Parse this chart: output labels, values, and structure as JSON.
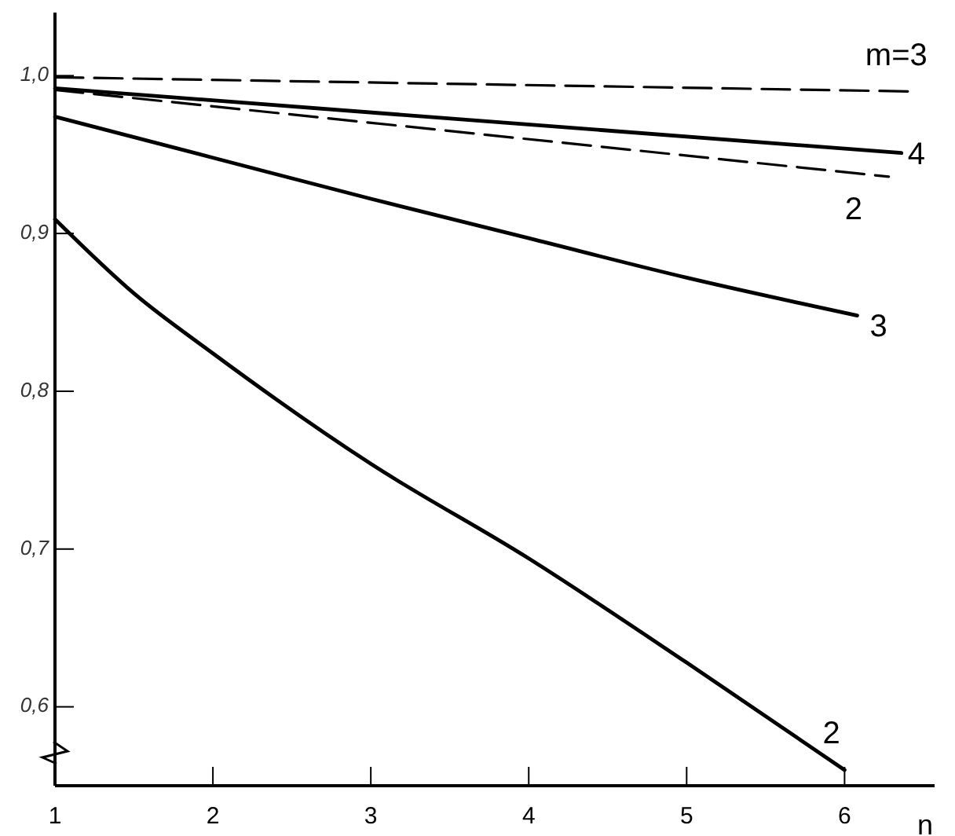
{
  "chart_data": {
    "type": "line",
    "xlabel": "n",
    "series": [
      {
        "name": "m=3",
        "color": "#000000",
        "line_style": "dashed",
        "x": [
          1,
          6.43
        ],
        "values": [
          0.999,
          0.99
        ]
      },
      {
        "name": "4",
        "color": "#000000",
        "line_style": "solid",
        "x": [
          1,
          6.36
        ],
        "values": [
          0.992,
          0.951
        ]
      },
      {
        "name": "2",
        "color": "#000000",
        "line_style": "dashed",
        "x": [
          1,
          6.28
        ],
        "values": [
          0.991,
          0.936
        ]
      },
      {
        "name": "3",
        "color": "#000000",
        "line_style": "solid",
        "x": [
          1,
          2,
          3,
          4,
          5,
          6.08
        ],
        "values": [
          0.974,
          0.948,
          0.922,
          0.897,
          0.872,
          0.848
        ]
      },
      {
        "name": "2",
        "color": "#000000",
        "line_style": "solid",
        "x": [
          1,
          1.5,
          2,
          3,
          4,
          5,
          6
        ],
        "values": [
          0.909,
          0.862,
          0.824,
          0.754,
          0.694,
          0.628,
          0.56
        ]
      }
    ],
    "xlim": [
      1,
      6.57
    ],
    "xticks": [
      1,
      2,
      3,
      4,
      5,
      6
    ],
    "ylim": [
      0.55,
      1.04
    ],
    "yticks": [
      {
        "value": 0.6,
        "label": "0,6"
      },
      {
        "value": 0.7,
        "label": "0,7"
      },
      {
        "value": 0.8,
        "label": "0,8"
      },
      {
        "value": 0.9,
        "label": "0,9"
      },
      {
        "value": 1.0,
        "label": "1,0"
      }
    ],
    "grid": false,
    "marker": "none"
  }
}
